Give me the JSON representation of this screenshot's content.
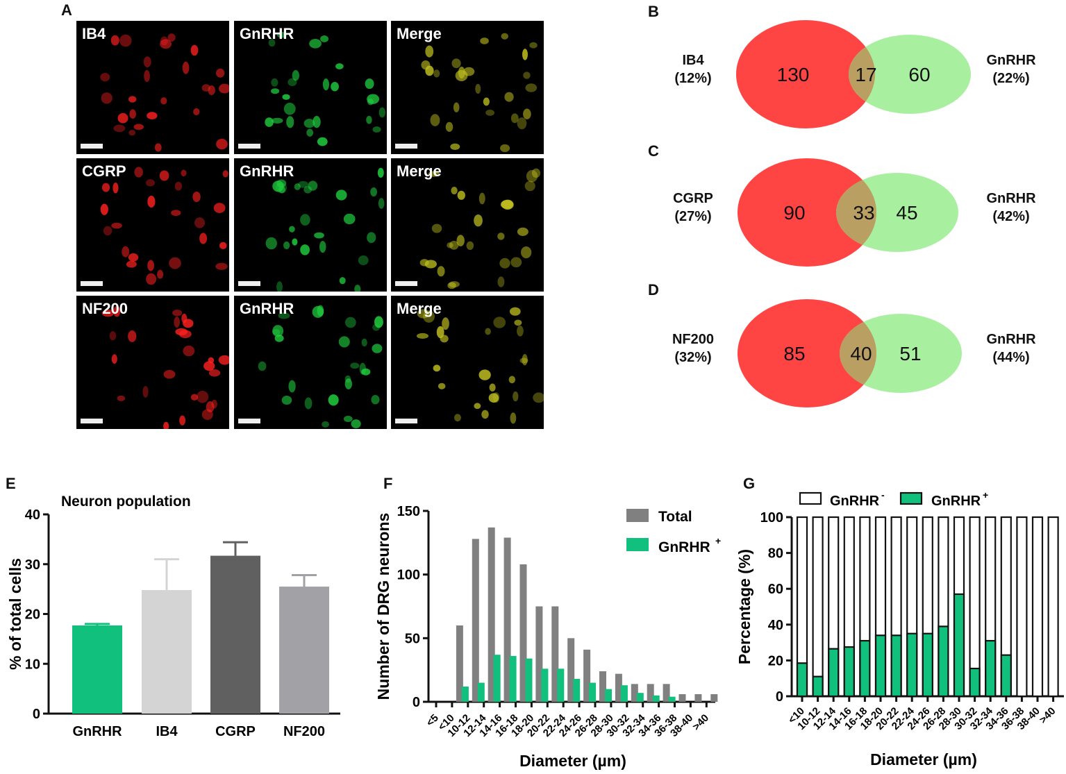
{
  "panels": {
    "a": "A",
    "b": "B",
    "c": "C",
    "d": "D",
    "e": "E",
    "f": "F",
    "g": "G"
  },
  "micrographs": [
    {
      "label": "IB4",
      "color": "#ff2020"
    },
    {
      "label": "GnRHR",
      "color": "#20d040"
    },
    {
      "label": "Merge",
      "color": "#c0c020"
    },
    {
      "label": "CGRP",
      "color": "#ff2020"
    },
    {
      "label": "GnRHR",
      "color": "#20d040"
    },
    {
      "label": "Merge",
      "color": "#c0c020"
    },
    {
      "label": "NF200",
      "color": "#ff2020"
    },
    {
      "label": "GnRHR",
      "color": "#20d040"
    },
    {
      "label": "Merge",
      "color": "#c0c020"
    }
  ],
  "venn": [
    {
      "left_label": "IB4",
      "left_pct": "(12%)",
      "right_label": "GnRHR",
      "right_pct": "(22%)",
      "left_only": "130",
      "overlap": "17",
      "right_only": "60"
    },
    {
      "left_label": "CGRP",
      "left_pct": "(27%)",
      "right_label": "GnRHR",
      "right_pct": "(42%)",
      "left_only": "90",
      "overlap": "33",
      "right_only": "45"
    },
    {
      "left_label": "NF200",
      "left_pct": "(32%)",
      "right_label": "GnRHR",
      "right_pct": "(44%)",
      "left_only": "85",
      "overlap": "40",
      "right_only": "51"
    }
  ],
  "colors": {
    "red": "#ff4444",
    "green": "#a8f0a0",
    "overlap": "#b9a062",
    "gnrhr": "#10c07c",
    "total": "#808080"
  },
  "chart_data": [
    {
      "type": "bar",
      "title": "Neuron population",
      "xlabel": "",
      "ylabel": "% of total cells",
      "ylim": [
        0,
        40
      ],
      "yticks": [
        "0",
        "10",
        "20",
        "30",
        "40"
      ],
      "categories": [
        "GnRHR",
        "IB4",
        "CGRP",
        "NF200"
      ],
      "values": [
        17.7,
        24.8,
        31.7,
        25.5
      ],
      "errors": [
        0.3,
        6.2,
        2.7,
        2.3
      ],
      "bar_colors": [
        "#10c07c",
        "#d4d4d4",
        "#606060",
        "#a2a2a6"
      ]
    },
    {
      "type": "bar",
      "title": "",
      "xlabel": "Diameter (µm)",
      "ylabel": "Number of DRG neurons",
      "ylim": [
        0,
        150
      ],
      "yticks": [
        "0",
        "50",
        "100",
        "150"
      ],
      "categories": [
        "<5",
        "<10",
        "10-12",
        "12-14",
        "14-16",
        "16-18",
        "18-20",
        "20-22",
        "22-24",
        "24-26",
        "26-28",
        "28-30",
        "30-32",
        "32-34",
        "34-36",
        "36-38",
        "38-40",
        ">40"
      ],
      "series": [
        {
          "name": "Total",
          "values": [
            0,
            60,
            128,
            137,
            129,
            108,
            75,
            75,
            50,
            41,
            24,
            22,
            14,
            14,
            14,
            6,
            6,
            6
          ]
        },
        {
          "name": "GnRHR+",
          "values": [
            0,
            12,
            15,
            37,
            36,
            34,
            26,
            26,
            18,
            15,
            10,
            13,
            7,
            5,
            4,
            0,
            0,
            0
          ]
        }
      ],
      "legend": [
        "Total",
        "GnRHR",
        "+"
      ],
      "legend_position": "top-right"
    },
    {
      "type": "bar",
      "stacked": true,
      "title": "",
      "xlabel": "Diameter (µm)",
      "ylabel": "Percentage (%)",
      "ylim": [
        0,
        100
      ],
      "yticks": [
        "0",
        "20",
        "40",
        "60",
        "80",
        "100"
      ],
      "categories": [
        "<10",
        "10-12",
        "12-14",
        "14-16",
        "16-18",
        "18-20",
        "20-22",
        "22-24",
        "24-26",
        "26-28",
        "28-30",
        "30-32",
        "32-34",
        "34-36",
        "36-38",
        "38-40",
        ">40"
      ],
      "series": [
        {
          "name": "GnRHR+",
          "values": [
            18.5,
            11,
            26.5,
            27.5,
            31,
            34,
            34,
            35,
            35,
            39,
            57,
            15.5,
            31,
            23,
            0,
            0,
            0
          ]
        },
        {
          "name": "GnRHR-",
          "values": [
            81.5,
            89,
            73.5,
            72.5,
            69,
            66,
            66,
            65,
            65,
            61,
            43,
            84.5,
            69,
            77,
            100,
            100,
            100
          ]
        }
      ],
      "legend": [
        "GnRHR",
        "-",
        "GnRHR",
        "+"
      ],
      "legend_position": "top"
    }
  ]
}
